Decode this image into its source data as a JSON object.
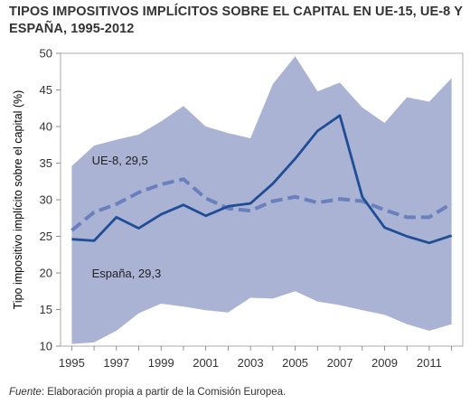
{
  "title": "TIPOS IMPOSITIVOS IMPLÍCITOS SOBRE EL CAPITAL EN UE-15, UE-8 Y ESPAÑA, 1995-2012",
  "source": {
    "label": "Fuente",
    "text": ": Elaboración propia a partir de la Comisión Europea."
  },
  "colors": {
    "band": "#aab3d4",
    "line": "#1f4e96",
    "dashed": "#6a7fbd",
    "text": "#333333"
  },
  "chart_data": {
    "type": "area",
    "title": "TIPOS IMPOSITIVOS IMPLÍCITOS SOBRE EL CAPITAL EN UE-15, UE-8 Y ESPAÑA, 1995-2012",
    "ylabel": "Tipo impositivo implícito sobre el capital (%)",
    "xlabel": "",
    "xlim": [
      1994.5,
      2012.5
    ],
    "ylim": [
      10,
      50
    ],
    "yticks": [
      10,
      15,
      20,
      25,
      30,
      35,
      40,
      45,
      50
    ],
    "xticks": [
      1995,
      1997,
      1999,
      2001,
      2003,
      2005,
      2007,
      2009,
      2011
    ],
    "grid": false,
    "x": [
      1995,
      1996,
      1997,
      1998,
      1999,
      2000,
      2001,
      2002,
      2003,
      2004,
      2005,
      2006,
      2007,
      2008,
      2009,
      2010,
      2011,
      2012
    ],
    "band": {
      "upper": [
        34.6,
        37.4,
        38.2,
        38.9,
        40.7,
        42.8,
        40.0,
        39.1,
        38.4,
        45.8,
        49.6,
        44.8,
        46.0,
        42.6,
        40.5,
        44.0,
        43.4,
        46.6
      ],
      "lower": [
        10.3,
        10.5,
        12.1,
        14.5,
        15.8,
        15.4,
        14.9,
        14.6,
        16.6,
        16.5,
        17.5,
        16.1,
        15.6,
        14.9,
        14.3,
        13.0,
        12.1,
        13.0
      ]
    },
    "series": [
      {
        "name": "España",
        "style": "solid",
        "values": [
          24.6,
          24.4,
          27.6,
          26.1,
          28.0,
          29.3,
          27.8,
          29.1,
          29.5,
          32.2,
          35.6,
          39.4,
          41.5,
          30.4,
          26.2,
          25.0,
          24.1,
          25.1
        ]
      },
      {
        "name": "UE-8",
        "style": "dashed",
        "values": [
          25.8,
          28.3,
          29.4,
          31.0,
          32.1,
          32.8,
          30.2,
          28.8,
          28.5,
          29.8,
          30.4,
          29.6,
          30.1,
          29.8,
          28.6,
          27.6,
          27.6,
          29.5
        ]
      }
    ],
    "annotations": [
      {
        "text": "UE-8, 29,5",
        "x": 1995.9,
        "y": 34.8
      },
      {
        "text": "España, 29,3",
        "x": 1995.9,
        "y": 19.4
      }
    ]
  }
}
